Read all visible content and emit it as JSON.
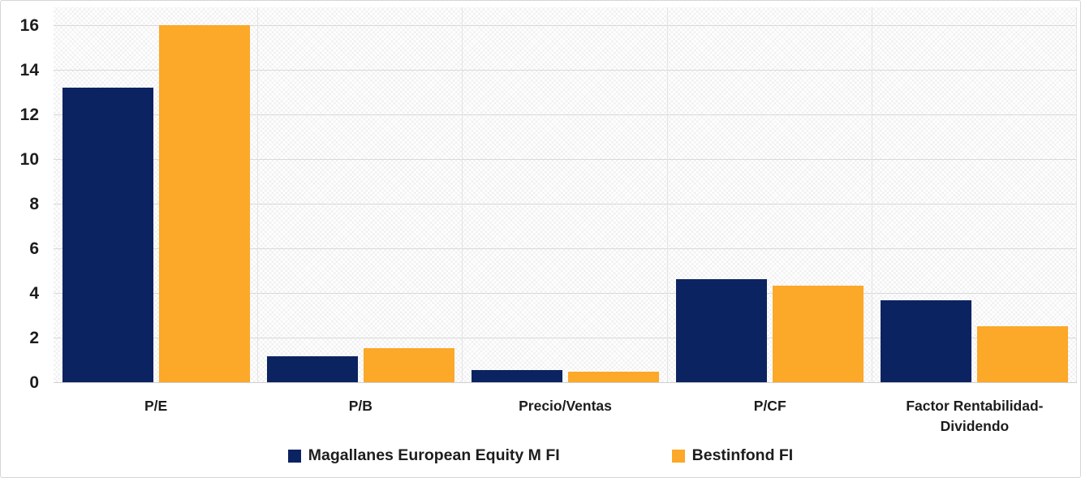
{
  "chart_data": {
    "type": "bar",
    "title": "",
    "xlabel": "",
    "ylabel": "",
    "categories": [
      "P/E",
      "P/B",
      "Precio/Ventas",
      "P/CF",
      "Factor Rentabilidad-Dividendo"
    ],
    "series": [
      {
        "name": "Magallanes European Equity M FI",
        "color": "#0c2361",
        "values": [
          13.25,
          1.2,
          0.6,
          4.65,
          3.7
        ]
      },
      {
        "name": "Bestinfond FI",
        "color": "#fca829",
        "values": [
          16.05,
          1.55,
          0.5,
          4.35,
          2.55
        ]
      }
    ],
    "ylim": [
      0,
      16.8
    ],
    "yticks": [
      0,
      2,
      4,
      6,
      8,
      10,
      12,
      14,
      16
    ],
    "grid": "horizontal gridlines at each y tick, faint vertical separators between categories",
    "plot_background": "light diagonal crosshatch pattern",
    "legend_position": "bottom-center"
  },
  "colors": {
    "series1": "#0c2361",
    "series2": "#fca829",
    "gridline": "#d9d9d9",
    "text": "#1d1d1d",
    "frame_border": "#d6d6d6"
  }
}
